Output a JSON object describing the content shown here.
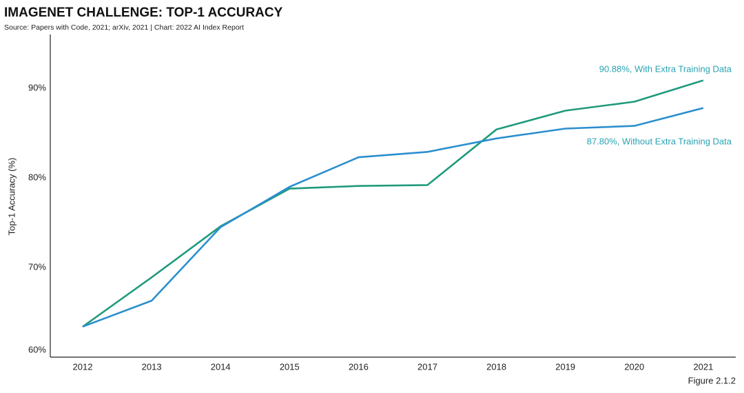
{
  "chart_data": {
    "type": "line",
    "title": "IMAGENET CHALLENGE: TOP-1 ACCURACY",
    "subtitle": "Source: Papers with Code, 2021; arXiv, 2021 | Chart: 2022 AI Index Report",
    "y_label": "Top-1 Accuracy (%)",
    "figure_label": "Figure 2.1.2",
    "categories": [
      "2012",
      "2013",
      "2014",
      "2015",
      "2016",
      "2017",
      "2018",
      "2019",
      "2020",
      "2021"
    ],
    "series": [
      {
        "name": "90.88%, With Extra Training Data",
        "color": "#1f9a7c",
        "values": [
          63.4,
          68.9,
          74.6,
          78.8,
          79.1,
          79.2,
          85.4,
          87.5,
          88.5,
          90.88
        ]
      },
      {
        "name": "87.80%, Without Extra Training Data",
        "color": "#2b8fcf",
        "values": [
          63.4,
          66.3,
          74.5,
          79.0,
          82.3,
          82.9,
          84.4,
          85.5,
          85.8,
          87.8
        ]
      }
    ],
    "ylim": [
      60,
      96
    ],
    "yticks": [
      {
        "value": 60,
        "label": "60%"
      },
      {
        "value": 70,
        "label": "70%"
      },
      {
        "value": 80,
        "label": "80%"
      },
      {
        "value": 90,
        "label": "90%"
      }
    ]
  }
}
